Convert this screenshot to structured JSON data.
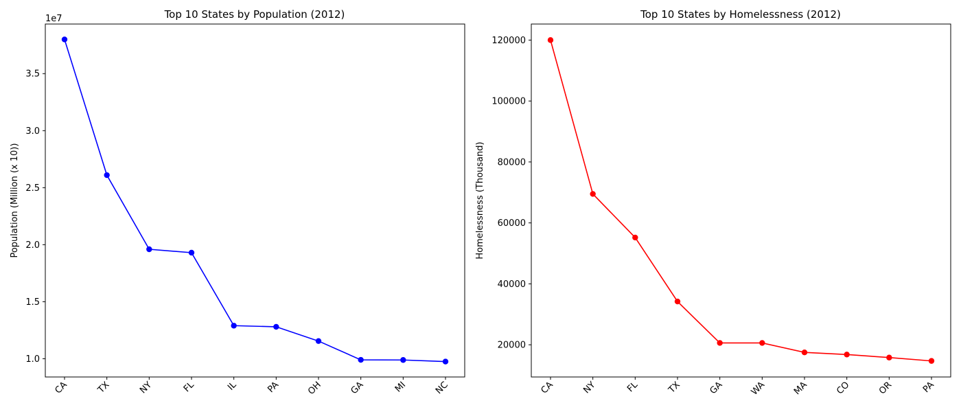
{
  "chart_data": [
    {
      "type": "line",
      "title": "Top 10 States by Population (2012)",
      "xlabel": "",
      "ylabel": "Population (Million (x 10))",
      "offset_text": "1e7",
      "categories": [
        "CA",
        "TX",
        "NY",
        "FL",
        "IL",
        "PA",
        "OH",
        "GA",
        "MI",
        "NC"
      ],
      "series": [
        {
          "values": [
            38000000,
            26100000,
            19600000,
            19300000,
            12900000,
            12800000,
            11550000,
            9900000,
            9890000,
            9750000
          ],
          "color": "#0000ff"
        }
      ],
      "yticks": [
        10000000,
        15000000,
        20000000,
        25000000,
        30000000,
        35000000
      ],
      "ytick_labels": [
        "1.0",
        "1.5",
        "2.0",
        "2.5",
        "3.0",
        "3.5"
      ],
      "ylim": [
        8400000,
        39350000
      ],
      "grid": false
    },
    {
      "type": "line",
      "title": "Top 10 States by Homelessness (2012)",
      "xlabel": "",
      "ylabel": "Homelessness (Thousand)",
      "categories": [
        "CA",
        "NY",
        "FL",
        "TX",
        "GA",
        "WA",
        "MA",
        "CO",
        "OR",
        "PA"
      ],
      "series": [
        {
          "values": [
            120000,
            69500,
            55200,
            34200,
            20600,
            20600,
            17500,
            16800,
            15800,
            14700
          ],
          "color": "#ff0000"
        }
      ],
      "yticks": [
        20000,
        40000,
        60000,
        80000,
        100000,
        120000
      ],
      "ytick_labels": [
        "20000",
        "40000",
        "60000",
        "80000",
        "100000",
        "120000"
      ],
      "ylim": [
        9430,
        125270
      ],
      "grid": false
    }
  ]
}
